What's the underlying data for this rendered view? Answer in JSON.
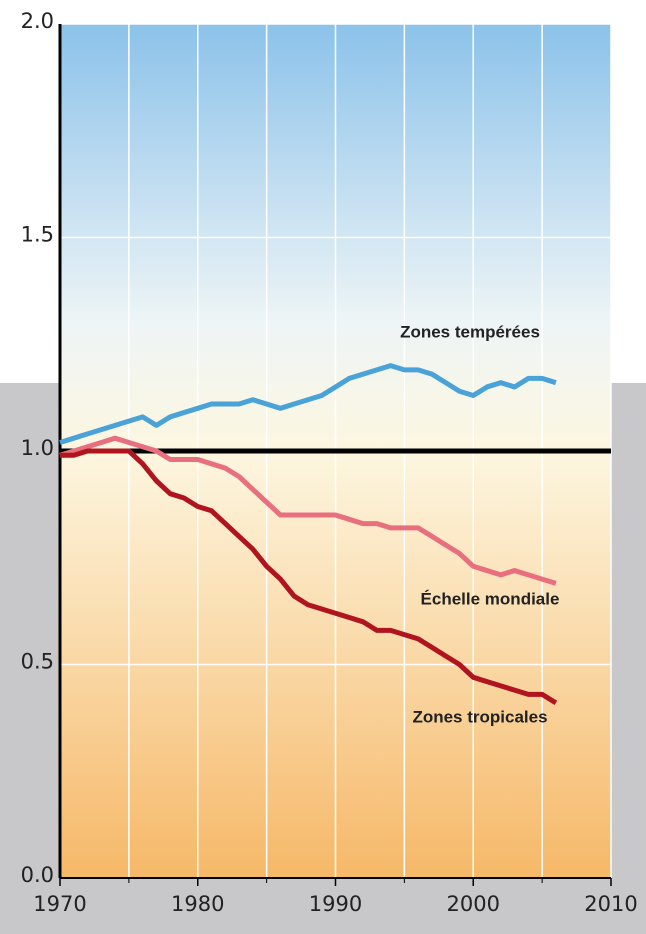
{
  "chart_data": {
    "type": "line",
    "x": [
      1970,
      1971,
      1972,
      1973,
      1974,
      1975,
      1976,
      1977,
      1978,
      1979,
      1980,
      1981,
      1982,
      1983,
      1984,
      1985,
      1986,
      1987,
      1988,
      1989,
      1990,
      1991,
      1992,
      1993,
      1994,
      1995,
      1996,
      1997,
      1998,
      1999,
      2000,
      2001,
      2002,
      2003,
      2004,
      2005,
      2006
    ],
    "series": [
      {
        "name": "Zones tempérées",
        "color": "#4aa3d8",
        "values": [
          1.02,
          1.03,
          1.04,
          1.05,
          1.06,
          1.07,
          1.08,
          1.06,
          1.08,
          1.09,
          1.1,
          1.11,
          1.11,
          1.11,
          1.12,
          1.11,
          1.1,
          1.11,
          1.12,
          1.13,
          1.15,
          1.17,
          1.18,
          1.19,
          1.2,
          1.19,
          1.19,
          1.18,
          1.16,
          1.14,
          1.13,
          1.15,
          1.16,
          1.15,
          1.17,
          1.17,
          1.16
        ]
      },
      {
        "name": "Échelle mondiale",
        "color": "#e8707e",
        "values": [
          0.99,
          1.0,
          1.01,
          1.02,
          1.03,
          1.02,
          1.01,
          1.0,
          0.98,
          0.98,
          0.98,
          0.97,
          0.96,
          0.94,
          0.91,
          0.88,
          0.85,
          0.85,
          0.85,
          0.85,
          0.85,
          0.84,
          0.83,
          0.83,
          0.82,
          0.82,
          0.82,
          0.8,
          0.78,
          0.76,
          0.73,
          0.72,
          0.71,
          0.72,
          0.71,
          0.7,
          0.69
        ]
      },
      {
        "name": "Zones tropicales",
        "color": "#b0151f",
        "values": [
          0.99,
          0.99,
          1.0,
          1.0,
          1.0,
          1.0,
          0.97,
          0.93,
          0.9,
          0.89,
          0.87,
          0.86,
          0.83,
          0.8,
          0.77,
          0.73,
          0.7,
          0.66,
          0.64,
          0.63,
          0.62,
          0.61,
          0.6,
          0.58,
          0.58,
          0.57,
          0.56,
          0.54,
          0.52,
          0.5,
          0.47,
          0.46,
          0.45,
          0.44,
          0.43,
          0.43,
          0.41
        ]
      }
    ],
    "xlim": [
      1970,
      2010
    ],
    "xticks": [
      1970,
      1980,
      1990,
      2000,
      2010
    ],
    "x_minor_ticks": [
      1975,
      1985,
      1995,
      2005
    ],
    "ylim": [
      0,
      2
    ],
    "yticks": [
      {
        "value": 0,
        "label": "0.0"
      },
      {
        "value": 0.5,
        "label": "0.5"
      },
      {
        "value": 1,
        "label": "1.0"
      },
      {
        "value": 1.5,
        "label": "1.5"
      },
      {
        "value": 2,
        "label": "2.0"
      }
    ],
    "reference_line": 1,
    "grid": true
  }
}
